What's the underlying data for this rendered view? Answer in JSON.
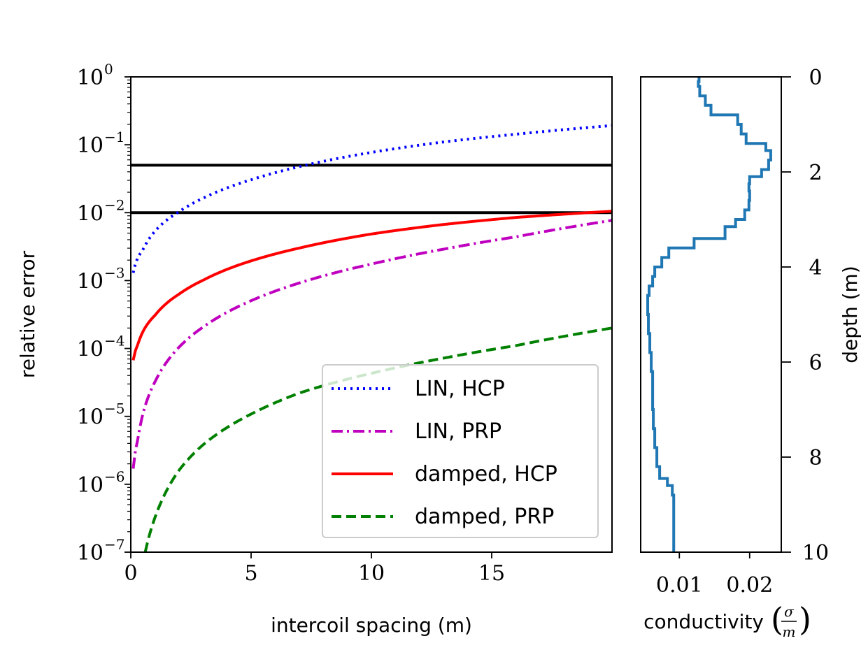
{
  "chart_data": [
    {
      "type": "line",
      "xscale": "linear",
      "yscale": "log",
      "xlim": [
        0,
        20
      ],
      "ylim": [
        1e-07,
        1
      ],
      "xlabel": "intercoil spacing (m)",
      "ylabel": "relative error",
      "xticks": [
        "0",
        "5",
        "10",
        "15"
      ],
      "yticks": [
        {
          "base": "10",
          "exp": "0"
        },
        {
          "base": "10",
          "exp": "−1"
        },
        {
          "base": "10",
          "exp": "−2"
        },
        {
          "base": "10",
          "exp": "−3"
        },
        {
          "base": "10",
          "exp": "−4"
        },
        {
          "base": "10",
          "exp": "−5"
        },
        {
          "base": "10",
          "exp": "−6"
        },
        {
          "base": "10",
          "exp": "−7"
        }
      ],
      "hlines": [
        0.05,
        0.01
      ],
      "legend_location": "lower-right",
      "series": [
        {
          "name": "LIN, HCP",
          "color": "#0000ff",
          "style": "dotted",
          "x": [
            0.1,
            0.5,
            1,
            2,
            3,
            4,
            5,
            7,
            10,
            13,
            16,
            20
          ],
          "y": [
            0.0013,
            0.0028,
            0.0053,
            0.0103,
            0.0163,
            0.0232,
            0.0305,
            0.0476,
            0.0772,
            0.11,
            0.143,
            0.192
          ]
        },
        {
          "name": "LIN, PRP",
          "color": "#bf00bf",
          "style": "dashdot",
          "x": [
            0.1,
            0.3,
            0.5,
            1,
            2,
            3,
            5,
            7,
            10,
            13,
            16,
            20
          ],
          "y": [
            1.7e-06,
            4.7e-06,
            1.08e-05,
            3.2e-05,
            0.000104,
            0.000206,
            0.000505,
            0.00092,
            0.00175,
            0.0029,
            0.0044,
            0.0077
          ]
        },
        {
          "name": "damped, HCP",
          "color": "#ff0000",
          "style": "solid",
          "x": [
            0.1,
            0.3,
            0.5,
            1,
            2,
            3,
            5,
            7,
            10,
            13,
            16,
            20
          ],
          "y": [
            6.7e-05,
            0.000116,
            0.000176,
            0.000306,
            0.00063,
            0.00101,
            0.00195,
            0.00301,
            0.00485,
            0.0067,
            0.0085,
            0.0105
          ]
        },
        {
          "name": "damped, PRP",
          "color": "#008000",
          "style": "dashed",
          "x": [
            0.6,
            1,
            2,
            3,
            5,
            7,
            10,
            13,
            16,
            20
          ],
          "y": [
            1e-07,
            3.2e-07,
            1.6e-06,
            3.8e-06,
            1.08e-05,
            2.2e-05,
            4.3e-05,
            7.2e-05,
            0.00011,
            0.0002
          ]
        }
      ]
    },
    {
      "type": "line",
      "style": "step",
      "xlim": [
        0.0045,
        0.0245
      ],
      "ylim": [
        10,
        0
      ],
      "xlabel_text": "conductivity",
      "xlabel_num": "σ",
      "xlabel_den": "m",
      "ylabel": "depth (m)",
      "xticks": [
        "0.01",
        "0.02"
      ],
      "yticks": [
        "0",
        "2",
        "4",
        "6",
        "8",
        "10"
      ],
      "series": [
        {
          "name": "conductivity profile",
          "color": "#1f77b4",
          "depth": [
            0,
            0.1,
            0.2,
            0.4,
            0.6,
            0.8,
            1.0,
            1.2,
            1.4,
            1.55,
            1.75,
            1.95,
            2.1,
            2.25,
            2.4,
            2.6,
            2.8,
            3.0,
            3.15,
            3.4,
            3.6,
            3.8,
            4.0,
            4.2,
            4.4,
            4.6,
            5.0,
            5.4,
            5.8,
            6.2,
            6.6,
            7.0,
            7.4,
            7.8,
            8.2,
            8.45,
            8.6,
            8.8,
            9.2,
            9.6,
            10.0
          ],
          "sigma": [
            0.0128,
            0.0127,
            0.0129,
            0.0137,
            0.0145,
            0.0183,
            0.0188,
            0.0195,
            0.0223,
            0.023,
            0.0227,
            0.0217,
            0.02,
            0.0199,
            0.02,
            0.0199,
            0.0193,
            0.018,
            0.0165,
            0.0121,
            0.0085,
            0.0075,
            0.0065,
            0.0062,
            0.0057,
            0.0055,
            0.0056,
            0.0058,
            0.006,
            0.0062,
            0.0062,
            0.0063,
            0.0065,
            0.0068,
            0.0072,
            0.0083,
            0.009,
            0.0092,
            0.0092,
            0.0092,
            0.0092
          ]
        }
      ]
    }
  ]
}
